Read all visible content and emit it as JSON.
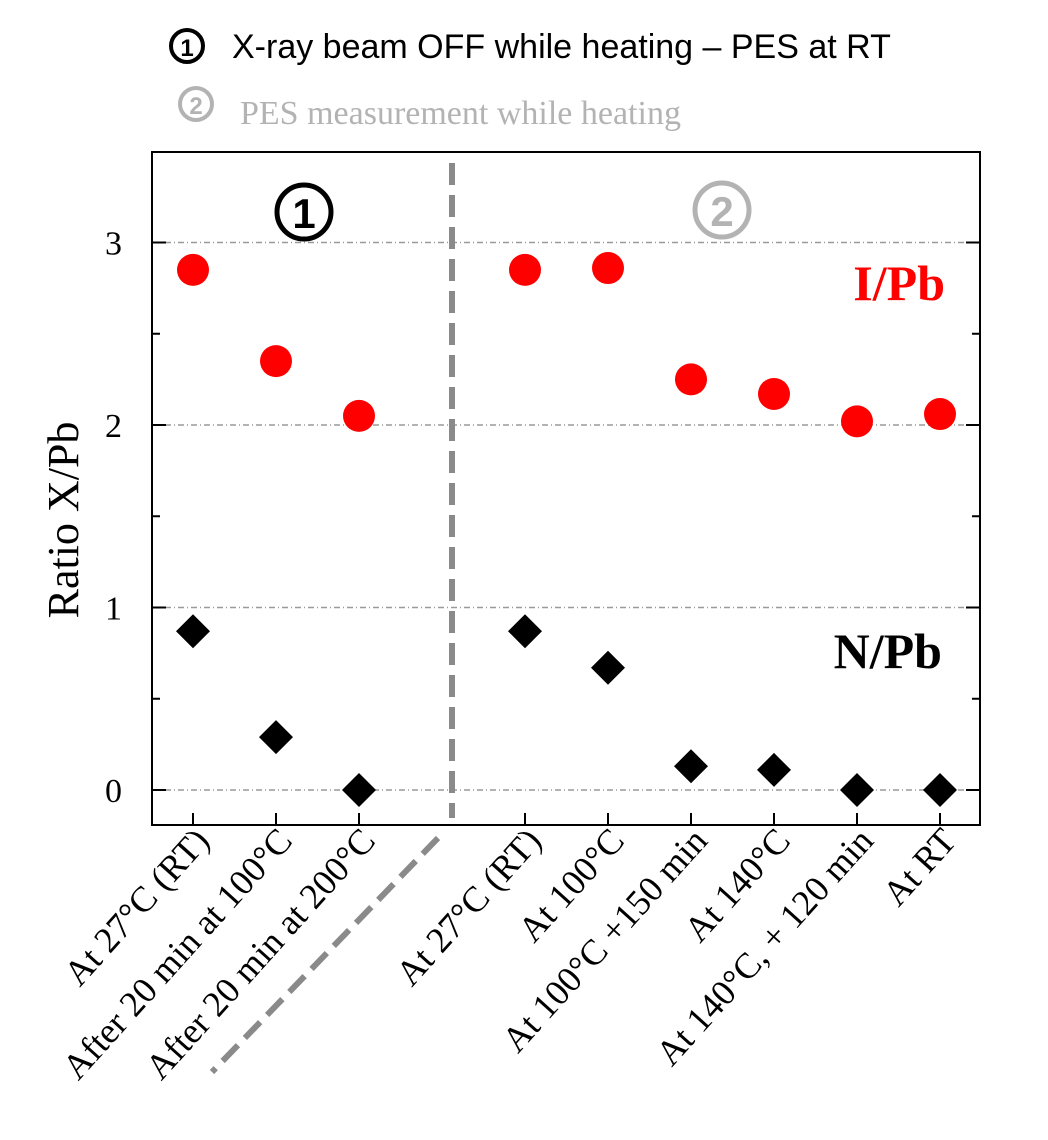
{
  "legend": [
    {
      "marker": "1",
      "text": "X-ray beam OFF while heating – PES at RT",
      "color": "#000000"
    },
    {
      "marker": "2",
      "text": "PES measurement while heating",
      "color": "#b3b3b3"
    }
  ],
  "panel_markers": [
    {
      "marker": "1",
      "color": "#000000"
    },
    {
      "marker": "2",
      "color": "#b3b3b3"
    }
  ],
  "chart_data": {
    "type": "scatter",
    "ylabel": "Ratio X/Pb",
    "ylim": [
      -0.2,
      3.5
    ],
    "yticks": [
      0,
      1,
      2,
      3
    ],
    "grid": "horizontal dashed at major ticks",
    "categories": [
      "At 27°C (RT)",
      "After 20 min at 100°C",
      "After 20 min at 200°C",
      "At 27°C (RT)",
      "At 100°C",
      "At 100°C +150 min",
      "At 140°C",
      "At 140°C, + 120 min",
      "At RT"
    ],
    "series": [
      {
        "name": "I/Pb",
        "marker": "circle",
        "color": "#ff0000",
        "values": [
          2.85,
          2.35,
          2.05,
          2.85,
          2.86,
          2.25,
          2.17,
          2.02,
          2.06
        ]
      },
      {
        "name": "N/Pb",
        "marker": "diamond",
        "color": "#000000",
        "values": [
          0.87,
          0.29,
          0.0,
          0.87,
          0.67,
          0.13,
          0.11,
          0.0,
          0.0
        ]
      }
    ],
    "series_label_colors": {
      "I/Pb": "#ff0000",
      "N/Pb": "#000000"
    },
    "divider": {
      "after_category_index": 2,
      "style": "gray dashed"
    }
  }
}
